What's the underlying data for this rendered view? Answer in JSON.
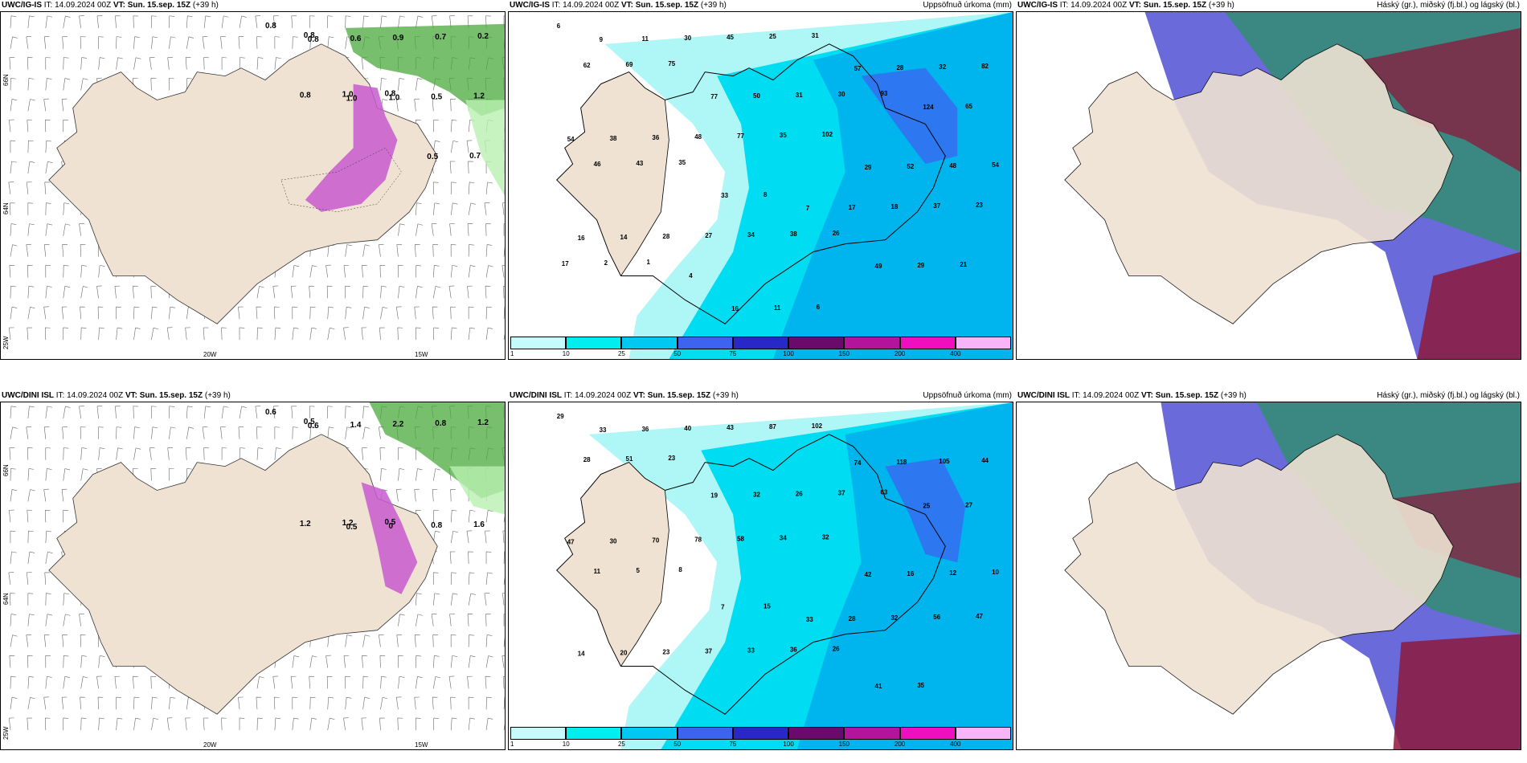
{
  "rows": [
    {
      "model_id": "UWC/IG-IS",
      "it_label": " IT: 14.09.2024 00Z ",
      "vt_label": "VT: Sun. 15.sep. 15Z",
      "lead": " (+39 h)",
      "lat_labels": [
        "66N",
        "64N"
      ],
      "lon_labels": [
        "25W",
        "20W",
        "15W"
      ],
      "panel1_values": [
        "0.8",
        "0.8",
        "0.6",
        "0.9",
        "0.7",
        "0.2",
        "0.8",
        "1.0",
        "1.0",
        "0.5",
        "1.2",
        "0.8",
        "1.0",
        "0.8",
        "0.5",
        "0.7"
      ],
      "panel2_values": [
        "6",
        "9",
        "11",
        "30",
        "45",
        "25",
        "31",
        "57",
        "28",
        "32",
        "82",
        "62",
        "69",
        "75",
        "77",
        "50",
        "31",
        "30",
        "93",
        "124",
        "65",
        "54",
        "38",
        "36",
        "48",
        "77",
        "35",
        "102",
        "29",
        "52",
        "48",
        "54",
        "46",
        "43",
        "35",
        "33",
        "8",
        "7",
        "17",
        "18",
        "37",
        "23",
        "16",
        "14",
        "28",
        "27",
        "34",
        "38",
        "26",
        "49",
        "29",
        "21",
        "17",
        "2",
        "1",
        "4",
        "16",
        "11",
        "6"
      ],
      "panel3_title": "Háský (gr.), miðský (fj.bl.) og lágský (bl.)"
    },
    {
      "model_id": "UWC/DINI ISL",
      "it_label": " IT: 14.09.2024 00Z ",
      "vt_label": "VT: Sun. 15.sep. 15Z",
      "lead": " (+39 h)",
      "lat_labels": [
        "66N",
        "64N"
      ],
      "lon_labels": [
        "25W",
        "20W",
        "15W"
      ],
      "panel1_values": [
        "0.6",
        "0.6",
        "1.4",
        "2.2",
        "0.8",
        "1.2",
        "0.5",
        "0.5",
        "0",
        "0.8",
        "1.6",
        "1.2",
        "1.2",
        "0.5"
      ],
      "panel2_values": [
        "29",
        "33",
        "36",
        "40",
        "43",
        "87",
        "102",
        "74",
        "118",
        "105",
        "44",
        "28",
        "51",
        "23",
        "19",
        "32",
        "26",
        "37",
        "63",
        "25",
        "27",
        "47",
        "30",
        "70",
        "78",
        "58",
        "34",
        "32",
        "42",
        "16",
        "12",
        "10",
        "11",
        "5",
        "8",
        "7",
        "15",
        "33",
        "28",
        "32",
        "56",
        "47",
        "14",
        "20",
        "23",
        "37",
        "33",
        "36",
        "26",
        "41",
        "35"
      ],
      "panel3_title": "Háský (gr.), miðský (fj.bl.) og lágský (bl.)"
    }
  ],
  "panel2_title": "Uppsöfnuð úrkoma (mm)",
  "colorbar": {
    "ticks": [
      "1",
      "10",
      "25",
      "50",
      "75",
      "100",
      "150",
      "200",
      "400"
    ],
    "colors": [
      "#c6fbfb",
      "#00eeee",
      "#00c8f0",
      "#3c64f0",
      "#2828c8",
      "#6a0a6a",
      "#b4149c",
      "#f00fbe",
      "#f8b4f8"
    ]
  },
  "colors": {
    "land": "#efe2d2",
    "sea_light": "#aff7f7",
    "sea_mid": "#00dcf2",
    "sea_deep": "#00b4ee",
    "green": "#4aa83c",
    "green_light": "#b8f0b0",
    "magenta": "#c85ad0",
    "cloud_blue": "#5a5ad6",
    "cloud_green": "#2f8f6a",
    "cloud_red": "#8c1a3c"
  }
}
